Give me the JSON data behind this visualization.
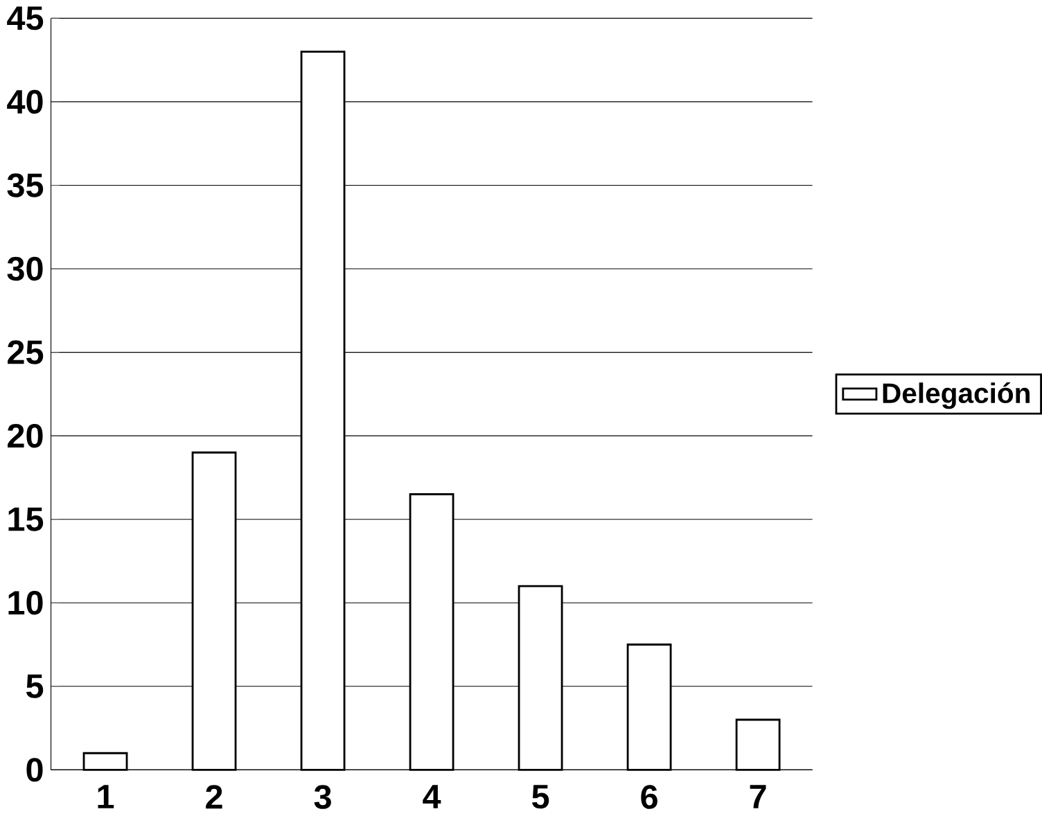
{
  "chart_data": {
    "type": "bar",
    "categories": [
      "1",
      "2",
      "3",
      "4",
      "5",
      "6",
      "7"
    ],
    "series": [
      {
        "name": "Delegación",
        "color": "#ffffff",
        "values": [
          1,
          19,
          43,
          16.5,
          11,
          7.5,
          3
        ]
      }
    ],
    "ylim": [
      0,
      45
    ],
    "yticks": [
      0,
      5,
      10,
      15,
      20,
      25,
      30,
      35,
      40,
      45
    ],
    "grid": "y",
    "legend": "right"
  }
}
